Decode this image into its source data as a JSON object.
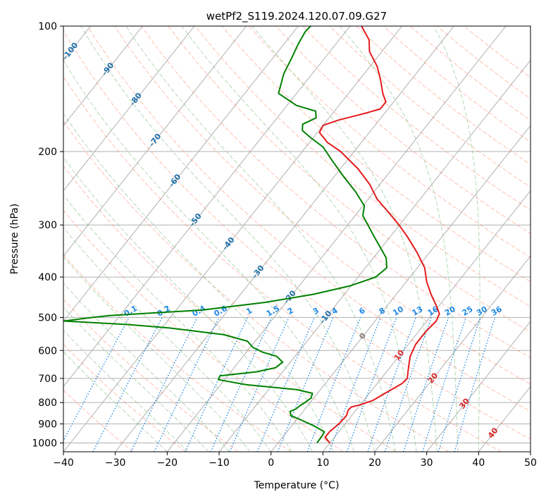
{
  "chart_data": {
    "type": "line",
    "title": "wetPf2_S119.2024.120.07.09.G27",
    "xlabel": "Temperature (°C)",
    "ylabel": "Pressure (hPa)",
    "xlim": [
      -40,
      50
    ],
    "ylim": [
      1050,
      100
    ],
    "y_scale": "log",
    "skew": "skew-T (isotherms slanted)",
    "grid": true,
    "x_ticks": [
      -40,
      -30,
      -20,
      -10,
      0,
      10,
      20,
      30,
      40,
      50
    ],
    "x_tick_labels": [
      "−40",
      "−30",
      "−20",
      "−10",
      "0",
      "10",
      "20",
      "30",
      "40",
      "50"
    ],
    "y_ticks": [
      100,
      200,
      300,
      400,
      500,
      600,
      700,
      800,
      900,
      1000
    ],
    "y_tick_labels": [
      "100",
      "200",
      "300",
      "400",
      "500",
      "600",
      "700",
      "800",
      "900",
      "1000"
    ],
    "colors": {
      "temperature": "#e41a1c",
      "dewpoint": "#008000",
      "isotherm": "#b0b0b0",
      "dry_adiabat": "#ff8060",
      "moist_adiabat": "#80c080",
      "mixing_ratio": "#1e88e5",
      "isotherm_label": "#1f6fa8",
      "positive_label": "#d62728",
      "zero_label": "#808080"
    },
    "series": [
      {
        "key": "temperature",
        "points": [
          {
            "p": 1000,
            "t": 10.0
          },
          {
            "p": 970,
            "t": 8.2
          },
          {
            "p": 940,
            "t": 8.2
          },
          {
            "p": 900,
            "t": 8.8
          },
          {
            "p": 860,
            "t": 9.0
          },
          {
            "p": 835,
            "t": 8.5
          },
          {
            "p": 820,
            "t": 8.6
          },
          {
            "p": 810,
            "t": 10.0
          },
          {
            "p": 790,
            "t": 11.8
          },
          {
            "p": 760,
            "t": 13.0
          },
          {
            "p": 720,
            "t": 14.8
          },
          {
            "p": 700,
            "t": 15.0
          },
          {
            "p": 660,
            "t": 13.6
          },
          {
            "p": 620,
            "t": 12.2
          },
          {
            "p": 580,
            "t": 11.4
          },
          {
            "p": 540,
            "t": 11.4
          },
          {
            "p": 510,
            "t": 11.8
          },
          {
            "p": 490,
            "t": 11.3
          },
          {
            "p": 470,
            "t": 9.6
          },
          {
            "p": 440,
            "t": 6.7
          },
          {
            "p": 410,
            "t": 3.9
          },
          {
            "p": 380,
            "t": 1.4
          },
          {
            "p": 350,
            "t": -2.3
          },
          {
            "p": 320,
            "t": -6.7
          },
          {
            "p": 300,
            "t": -10.1
          },
          {
            "p": 280,
            "t": -14.0
          },
          {
            "p": 260,
            "t": -18.3
          },
          {
            "p": 240,
            "t": -21.9
          },
          {
            "p": 220,
            "t": -26.6
          },
          {
            "p": 200,
            "t": -32.6
          },
          {
            "p": 190,
            "t": -36.6
          },
          {
            "p": 180,
            "t": -39.6
          },
          {
            "p": 173,
            "t": -40.0
          },
          {
            "p": 168,
            "t": -37.8
          },
          {
            "p": 162,
            "t": -33.8
          },
          {
            "p": 158,
            "t": -31.5
          },
          {
            "p": 152,
            "t": -31.5
          },
          {
            "p": 145,
            "t": -33.4
          },
          {
            "p": 135,
            "t": -35.8
          },
          {
            "p": 125,
            "t": -38.6
          },
          {
            "p": 115,
            "t": -42.4
          },
          {
            "p": 108,
            "t": -44.2
          },
          {
            "p": 100,
            "t": -47.8
          }
        ]
      },
      {
        "key": "dewpoint",
        "points": [
          {
            "p": 1000,
            "t": 7.5
          },
          {
            "p": 960,
            "t": 7.4
          },
          {
            "p": 940,
            "t": 7.2
          },
          {
            "p": 910,
            "t": 4.3
          },
          {
            "p": 880,
            "t": 0.8
          },
          {
            "p": 860,
            "t": -1.7
          },
          {
            "p": 840,
            "t": -2.5
          },
          {
            "p": 830,
            "t": -1.8
          },
          {
            "p": 815,
            "t": -1.5
          },
          {
            "p": 800,
            "t": -1.0
          },
          {
            "p": 780,
            "t": -0.5
          },
          {
            "p": 760,
            "t": -1.0
          },
          {
            "p": 745,
            "t": -4.5
          },
          {
            "p": 725,
            "t": -15.0
          },
          {
            "p": 705,
            "t": -21.2
          },
          {
            "p": 690,
            "t": -21.5
          },
          {
            "p": 675,
            "t": -15.0
          },
          {
            "p": 660,
            "t": -12.0
          },
          {
            "p": 640,
            "t": -11.5
          },
          {
            "p": 620,
            "t": -13.5
          },
          {
            "p": 605,
            "t": -17.0
          },
          {
            "p": 590,
            "t": -19.5
          },
          {
            "p": 570,
            "t": -21.5
          },
          {
            "p": 550,
            "t": -27.0
          },
          {
            "p": 530,
            "t": -38.5
          },
          {
            "p": 520,
            "t": -47.0
          },
          {
            "p": 510,
            "t": -60.0
          },
          {
            "p": 500,
            "t": -55.0
          },
          {
            "p": 495,
            "t": -52.0
          },
          {
            "p": 480,
            "t": -35.0
          },
          {
            "p": 460,
            "t": -24.0
          },
          {
            "p": 440,
            "t": -16.0
          },
          {
            "p": 420,
            "t": -10.2
          },
          {
            "p": 400,
            "t": -6.6
          },
          {
            "p": 380,
            "t": -5.9
          },
          {
            "p": 360,
            "t": -7.5
          },
          {
            "p": 340,
            "t": -10.2
          },
          {
            "p": 320,
            "t": -13.1
          },
          {
            "p": 300,
            "t": -16.1
          },
          {
            "p": 285,
            "t": -18.5
          },
          {
            "p": 270,
            "t": -19.7
          },
          {
            "p": 250,
            "t": -23.5
          },
          {
            "p": 230,
            "t": -28.1
          },
          {
            "p": 210,
            "t": -32.9
          },
          {
            "p": 195,
            "t": -36.7
          },
          {
            "p": 185,
            "t": -40.6
          },
          {
            "p": 178,
            "t": -43.2
          },
          {
            "p": 172,
            "t": -44.1
          },
          {
            "p": 166,
            "t": -42.5
          },
          {
            "p": 160,
            "t": -43.6
          },
          {
            "p": 155,
            "t": -48.2
          },
          {
            "p": 145,
            "t": -53.5
          },
          {
            "p": 130,
            "t": -55.5
          },
          {
            "p": 120,
            "t": -56.3
          },
          {
            "p": 110,
            "t": -57.3
          },
          {
            "p": 103,
            "t": -57.8
          },
          {
            "p": 100,
            "t": -57.6
          }
        ]
      }
    ],
    "annotations": {
      "isotherm_labels": [
        {
          "text": "-100",
          "t": -100,
          "p": 115
        },
        {
          "text": "-90",
          "t": -90,
          "p": 127
        },
        {
          "text": "-80",
          "t": -80,
          "p": 150
        },
        {
          "text": "-70",
          "t": -70,
          "p": 188
        },
        {
          "text": "-60",
          "t": -60,
          "p": 235
        },
        {
          "text": "-50",
          "t": -50,
          "p": 292
        },
        {
          "text": "-40",
          "t": -40,
          "p": 333
        },
        {
          "text": "-30",
          "t": -30,
          "p": 389
        },
        {
          "text": "-20",
          "t": -20,
          "p": 447
        },
        {
          "text": "-10",
          "t": -10,
          "p": 500
        },
        {
          "text": "0",
          "t": 0,
          "p": 555
        },
        {
          "text": "10",
          "t": 10,
          "p": 617
        },
        {
          "text": "20",
          "t": 20,
          "p": 700
        },
        {
          "text": "30",
          "t": 30,
          "p": 806
        },
        {
          "text": "40",
          "t": 40,
          "p": 948
        }
      ],
      "mixing_ratio_labels": [
        "0.1",
        "0.2",
        "0.4",
        "0.6",
        "1",
        "1.5",
        "2",
        "3",
        "4",
        "6",
        "8",
        "10",
        "13",
        "16",
        "20",
        "25",
        "30",
        "36"
      ]
    }
  }
}
